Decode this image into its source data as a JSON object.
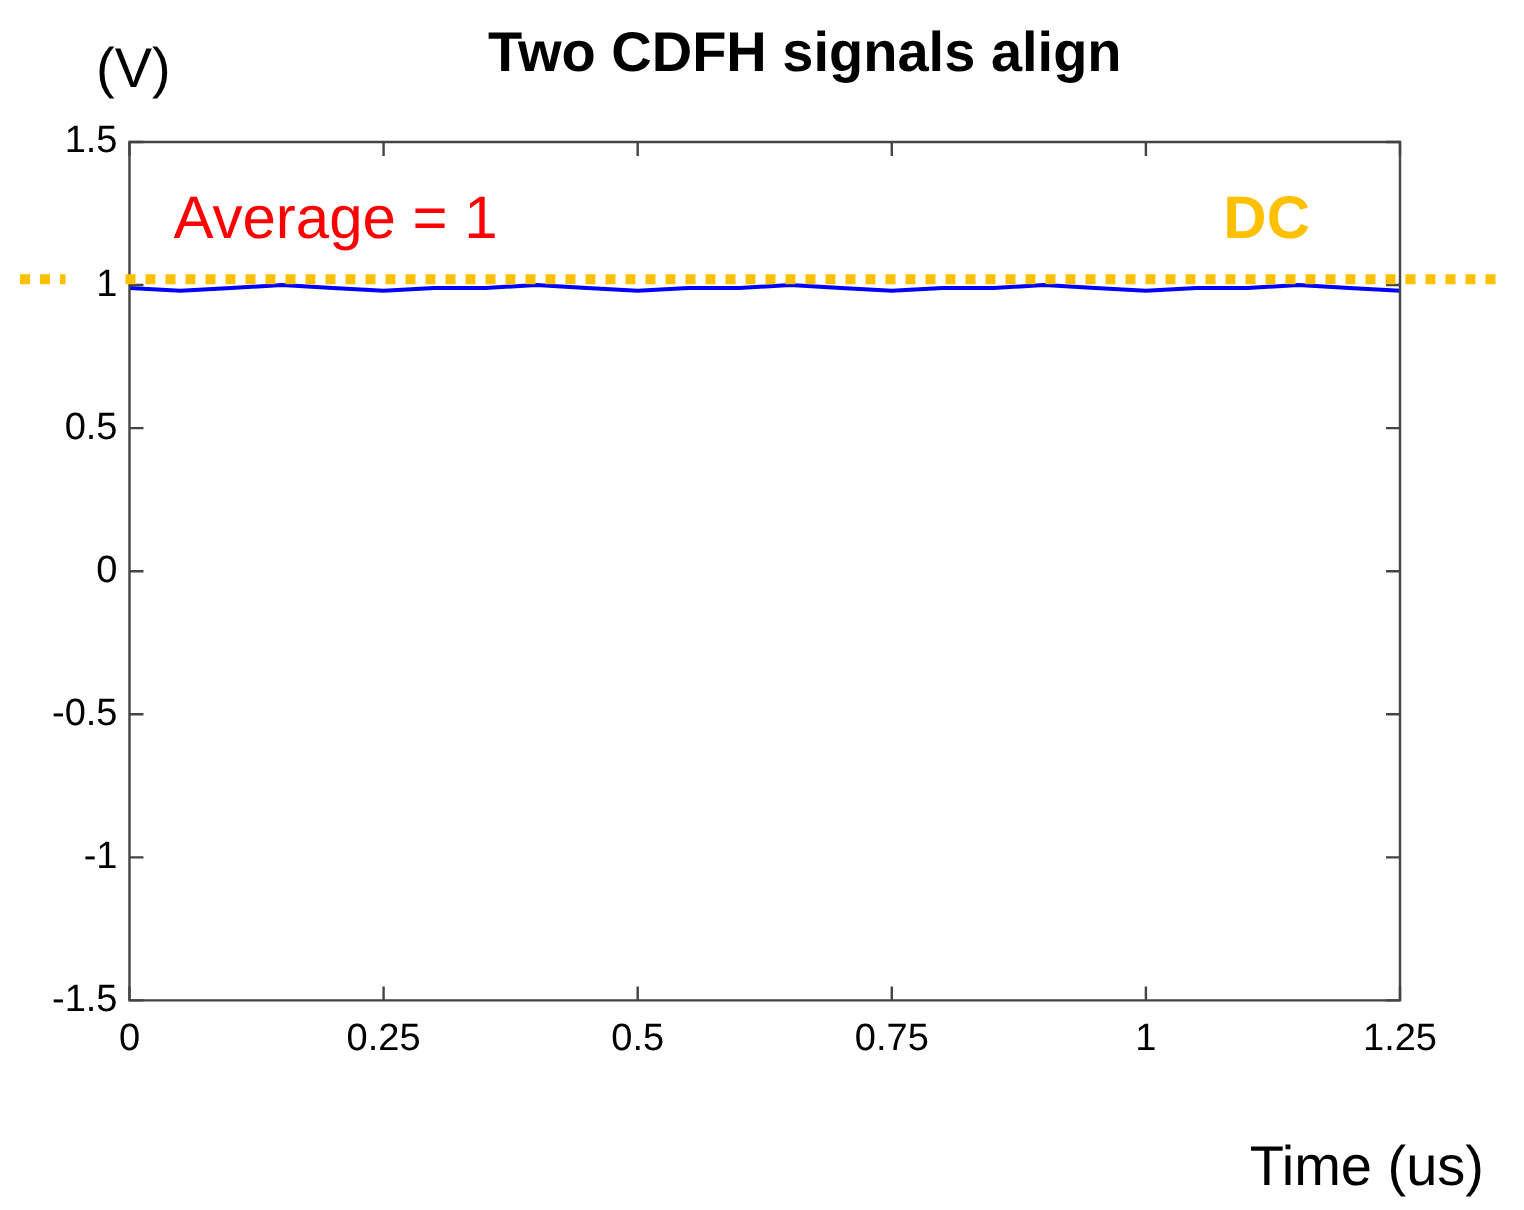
{
  "chart_data": {
    "type": "line",
    "title": "Two CDFH signals align",
    "xlabel": "Time (us)",
    "ylabel": "(V)",
    "annotations": [
      "Average = 1"
    ],
    "x": [
      0,
      0.05,
      0.1,
      0.15,
      0.2,
      0.25,
      0.3,
      0.35,
      0.4,
      0.45,
      0.5,
      0.55,
      0.6,
      0.65,
      0.7,
      0.75,
      0.8,
      0.85,
      0.9,
      0.95,
      1,
      1.05,
      1.1,
      1.15,
      1.2,
      1.25
    ],
    "series": [
      {
        "color": "#0000ff",
        "values": [
          0.99,
          0.98,
          0.99,
          1.0,
          0.99,
          0.98,
          0.99,
          0.99,
          1.0,
          0.99,
          0.98,
          0.99,
          0.99,
          1.0,
          0.99,
          0.98,
          0.99,
          0.99,
          1.0,
          0.99,
          0.98,
          0.99,
          0.99,
          1.0,
          0.99,
          0.98
        ]
      }
    ],
    "ref_lines": [
      {
        "axis": "y",
        "value": 1.02,
        "label": "DC",
        "color": "#ffc000",
        "line_style": "dotted"
      }
    ],
    "xlim": [
      0,
      1.25
    ],
    "xticks": [
      0,
      0.25,
      0.5,
      0.75,
      1,
      1.25
    ],
    "ylim": [
      -1.5,
      1.5
    ],
    "yticks": [
      -1.5,
      -1,
      -0.5,
      0,
      0.5,
      1,
      1.5
    ],
    "marker": "none",
    "legend": false
  }
}
